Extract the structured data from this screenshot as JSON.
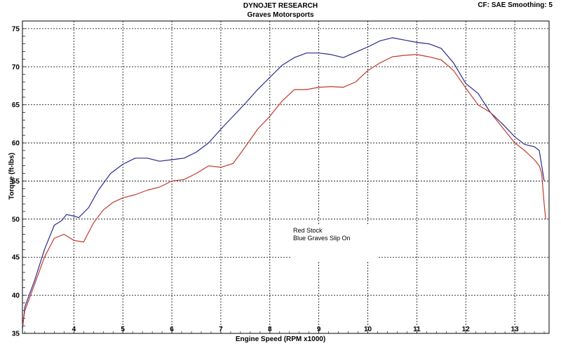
{
  "header": {
    "line1": "DYNOJET RESEARCH",
    "line2": "Graves Motorsports",
    "settings": "CF: SAE   Smoothing: 5"
  },
  "annotation": {
    "line1": "Red Stock",
    "line2": "Blue Graves Slip On"
  },
  "chart_data": {
    "type": "line",
    "title": "DYNOJET RESEARCH",
    "subtitle": "Graves Motorsports",
    "xlabel": "Engine Speed (RPM x1000)",
    "ylabel": "Torque (ft-lbs)",
    "xlim": [
      2.95,
      13.7
    ],
    "ylim": [
      35,
      76
    ],
    "xticks": [
      4,
      5,
      6,
      7,
      8,
      9,
      10,
      11,
      12,
      13
    ],
    "yticks": [
      35,
      40,
      45,
      50,
      55,
      60,
      65,
      70,
      75
    ],
    "grid": true,
    "series": [
      {
        "name": "Blue Graves Slip On",
        "color": "#2a2a8c",
        "x": [
          2.95,
          3.0,
          3.2,
          3.4,
          3.6,
          3.75,
          3.85,
          4.0,
          4.1,
          4.3,
          4.5,
          4.75,
          5.0,
          5.25,
          5.5,
          5.75,
          6.0,
          6.25,
          6.5,
          6.75,
          7.0,
          7.25,
          7.5,
          7.75,
          8.0,
          8.25,
          8.5,
          8.75,
          9.0,
          9.25,
          9.5,
          9.75,
          10.0,
          10.25,
          10.5,
          10.75,
          11.0,
          11.25,
          11.5,
          11.75,
          12.0,
          12.25,
          12.5,
          12.75,
          13.0,
          13.2,
          13.4,
          13.5,
          13.55,
          13.6
        ],
        "values": [
          35.5,
          38.5,
          42.0,
          46.0,
          49.2,
          49.8,
          50.6,
          50.4,
          50.2,
          51.5,
          53.8,
          56.0,
          57.2,
          58.0,
          58.0,
          57.6,
          57.8,
          58.0,
          58.8,
          60.0,
          61.8,
          63.5,
          65.2,
          67.0,
          68.6,
          70.2,
          71.2,
          71.8,
          71.8,
          71.6,
          71.2,
          71.9,
          72.6,
          73.4,
          73.8,
          73.5,
          73.2,
          73.0,
          72.4,
          70.5,
          67.8,
          66.5,
          64.0,
          62.5,
          60.8,
          59.8,
          59.5,
          59.0,
          57.0,
          55.0
        ]
      },
      {
        "name": "Red Stock",
        "color": "#c0392b",
        "x": [
          2.95,
          3.0,
          3.2,
          3.4,
          3.6,
          3.8,
          4.0,
          4.2,
          4.4,
          4.6,
          4.8,
          5.0,
          5.25,
          5.5,
          5.75,
          6.0,
          6.25,
          6.5,
          6.75,
          7.0,
          7.25,
          7.5,
          7.75,
          8.0,
          8.25,
          8.5,
          8.75,
          9.0,
          9.25,
          9.5,
          9.75,
          10.0,
          10.25,
          10.5,
          10.75,
          11.0,
          11.25,
          11.5,
          11.75,
          12.0,
          12.25,
          12.5,
          12.75,
          13.0,
          13.2,
          13.4,
          13.5,
          13.55,
          13.6,
          13.63
        ],
        "values": [
          36.0,
          38.0,
          41.5,
          45.0,
          47.5,
          48.0,
          47.2,
          47.0,
          49.5,
          51.2,
          52.2,
          52.8,
          53.2,
          53.8,
          54.2,
          55.0,
          55.2,
          56.0,
          57.0,
          56.8,
          57.3,
          59.5,
          61.8,
          63.5,
          65.5,
          67.0,
          67.0,
          67.3,
          67.4,
          67.3,
          68.0,
          69.5,
          70.5,
          71.3,
          71.5,
          71.6,
          71.3,
          70.9,
          69.5,
          67.2,
          65.0,
          64.0,
          62.0,
          60.0,
          59.0,
          57.8,
          57.0,
          56.0,
          52.0,
          50.0
        ]
      }
    ]
  }
}
